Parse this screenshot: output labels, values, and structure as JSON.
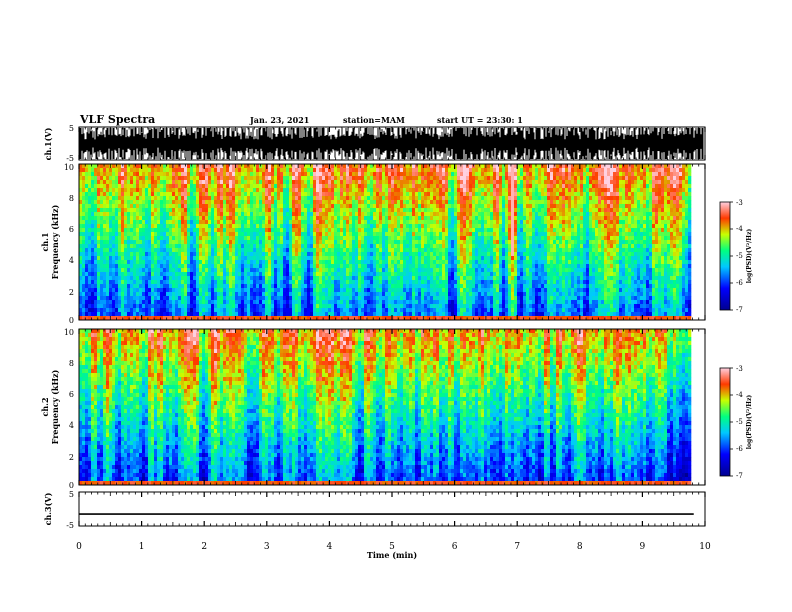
{
  "header": {
    "title": "VLF Spectra",
    "date": "Jan. 23, 2021",
    "station": "station=MAM",
    "start": "start UT = 23:30: 1"
  },
  "chart_data": [
    {
      "type": "line",
      "panel": "ch1-waveform",
      "ylabel": "ch.1(V)",
      "ylim": [
        -5,
        5
      ],
      "yticks": [
        "5",
        "-5"
      ],
      "xlim": [
        0,
        10
      ],
      "description_series": "dense impulsive waveform saturating between -5 and 5 V"
    },
    {
      "type": "heatmap",
      "panel": "ch1-spectrogram",
      "ylabel": "ch.1 Frequency (kHz)",
      "ylabel_line1": "ch.1",
      "ylabel_line2": "Frequency (kHz)",
      "ylim": [
        0,
        10
      ],
      "yticks": [
        "0",
        "2",
        "4",
        "6",
        "8",
        "10"
      ],
      "xlim": [
        0,
        10
      ],
      "data_end_min": 9.82,
      "colorbar": {
        "label": "log(PSD)(V²/Hz)",
        "range": [
          -7,
          -3
        ],
        "ticks": [
          "-3",
          "-4",
          "-5",
          "-6",
          "-7"
        ]
      }
    },
    {
      "type": "heatmap",
      "panel": "ch2-spectrogram",
      "ylabel": "ch.2 Frequency (kHz)",
      "ylabel_line1": "ch.2",
      "ylabel_line2": "Frequency (kHz)",
      "ylim": [
        0,
        10
      ],
      "yticks": [
        "0",
        "2",
        "4",
        "6",
        "8",
        "10"
      ],
      "xlim": [
        0,
        10
      ],
      "data_end_min": 9.82,
      "colorbar": {
        "label": "log(PSD)(V²/Hz)",
        "range": [
          -7,
          -3
        ],
        "ticks": [
          "-3",
          "-4",
          "-5",
          "-6",
          "-7"
        ]
      }
    },
    {
      "type": "line",
      "panel": "ch3-waveform",
      "ylabel": "ch.3(V)",
      "ylim": [
        -5,
        5
      ],
      "yticks": [
        "5",
        "-5"
      ],
      "xlim": [
        0,
        10
      ],
      "x": [
        0,
        9.82
      ],
      "y": [
        -1.5,
        -1.5
      ]
    }
  ],
  "xaxis": {
    "label": "Time (min)",
    "ticks": [
      "0",
      "1",
      "2",
      "3",
      "4",
      "5",
      "6",
      "7",
      "8",
      "9",
      "10"
    ]
  },
  "colors": {
    "colormap": [
      "#000090",
      "#0000ff",
      "#00c8ff",
      "#00ff80",
      "#c8ff00",
      "#ff3a00",
      "#ffd0e0"
    ]
  }
}
